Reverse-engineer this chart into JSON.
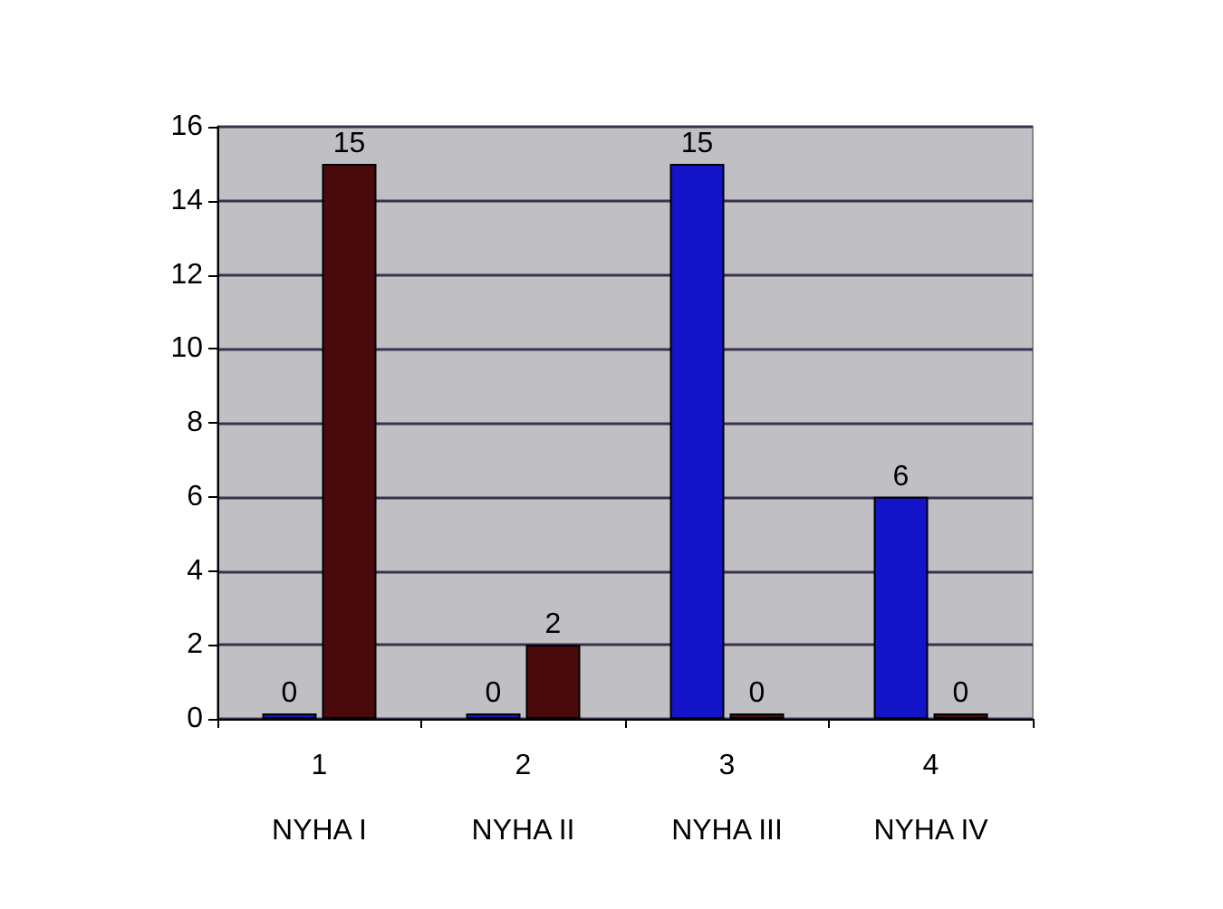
{
  "chart_data": {
    "type": "bar",
    "categories": [
      "1\nNYHA I",
      "2\nNYHA II",
      "3\nNYHA III",
      "4\nNYHA IV"
    ],
    "series": [
      {
        "color": "#1414c8",
        "values": [
          0,
          0,
          15,
          6
        ]
      },
      {
        "color": "#4a0a0c",
        "values": [
          15,
          2,
          0,
          0
        ]
      }
    ],
    "ylim": [
      0,
      16
    ],
    "yticks": [
      0,
      2,
      4,
      6,
      8,
      10,
      12,
      14,
      16
    ],
    "grid": "y",
    "data_labels": true
  }
}
